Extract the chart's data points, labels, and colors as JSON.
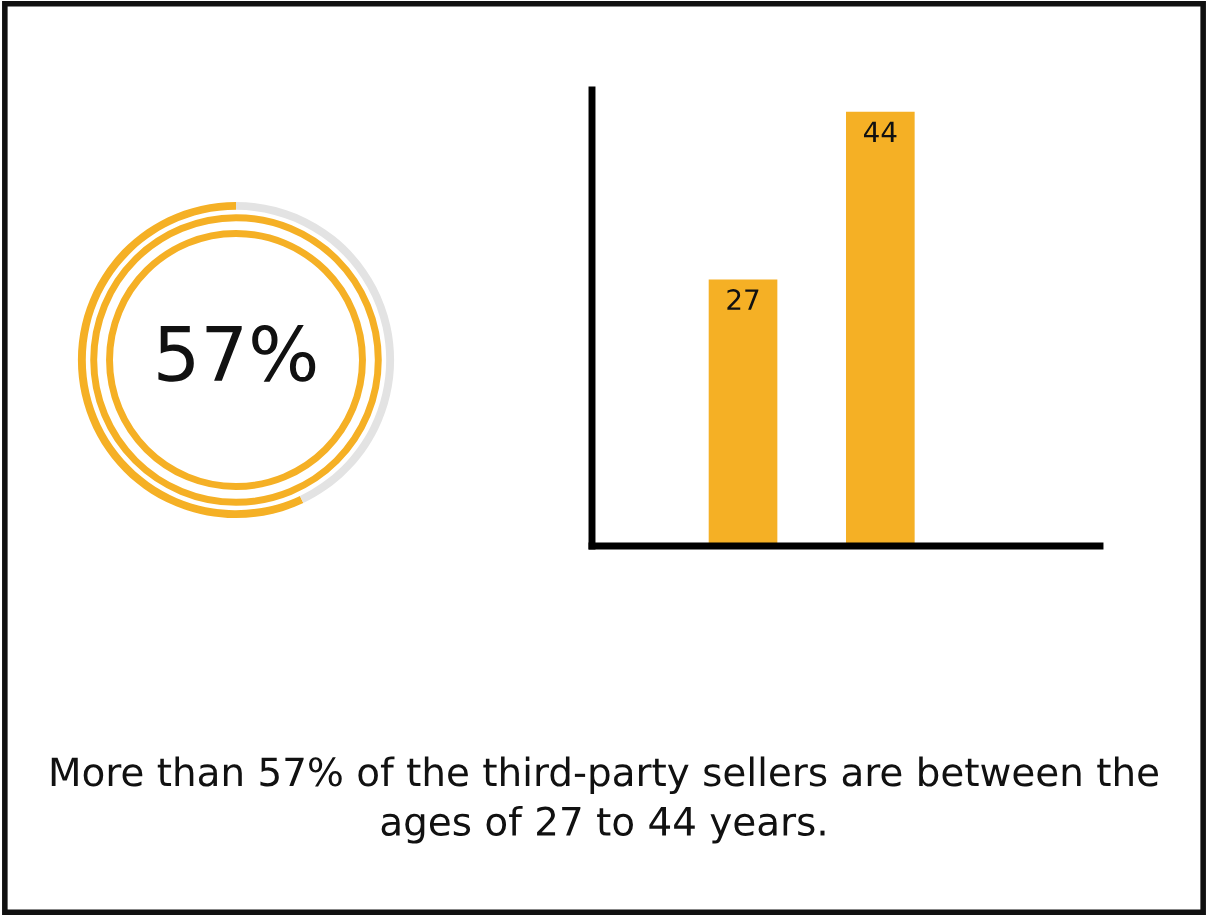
{
  "chart_data": [
    {
      "type": "donut",
      "categories": [
        null,
        null
      ],
      "values": [
        57,
        43
      ],
      "colors": [
        "#f5b025",
        "#e3e3e3"
      ],
      "annotations": [
        "57%"
      ]
    },
    {
      "type": "bar",
      "categories": [
        null,
        null
      ],
      "values": [
        27,
        44
      ],
      "color": "#f5b025",
      "data_labels": true,
      "tick_labels": false,
      "grid": false,
      "legend": false,
      "annotations": [
        "More than 57% of the third-party sellers are between the ages of 27 to 44 years."
      ]
    }
  ]
}
